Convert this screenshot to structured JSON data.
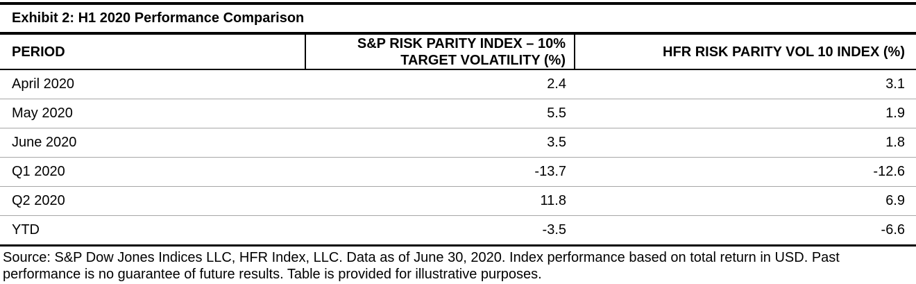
{
  "colors": {
    "text": "#000000",
    "border_strong": "#000000",
    "row_divider": "#a6a6a6",
    "background": "#ffffff"
  },
  "exhibit": {
    "title": "Exhibit 2: H1 2020 Performance Comparison"
  },
  "table": {
    "columns": [
      {
        "key": "period",
        "label": "PERIOD"
      },
      {
        "key": "sp",
        "label": "S&P RISK PARITY INDEX – 10% TARGET VOLATILITY (%)"
      },
      {
        "key": "hfr",
        "label": "HFR RISK PARITY VOL 10 INDEX (%)"
      }
    ],
    "rows": [
      {
        "period": "April 2020",
        "sp": "2.4",
        "hfr": "3.1"
      },
      {
        "period": "May 2020",
        "sp": "5.5",
        "hfr": "1.9"
      },
      {
        "period": "June 2020",
        "sp": "3.5",
        "hfr": "1.8"
      },
      {
        "period": "Q1 2020",
        "sp": "-13.7",
        "hfr": "-12.6"
      },
      {
        "period": "Q2 2020",
        "sp": "11.8",
        "hfr": "6.9"
      },
      {
        "period": "YTD",
        "sp": "-3.5",
        "hfr": "-6.6"
      }
    ]
  },
  "footer": {
    "source_text": "Source: S&P Dow Jones Indices LLC, HFR Index, LLC. Data as of June 30, 2020. Index performance based on total return in USD. Past performance is no guarantee of future results. Table is provided for illustrative purposes."
  }
}
